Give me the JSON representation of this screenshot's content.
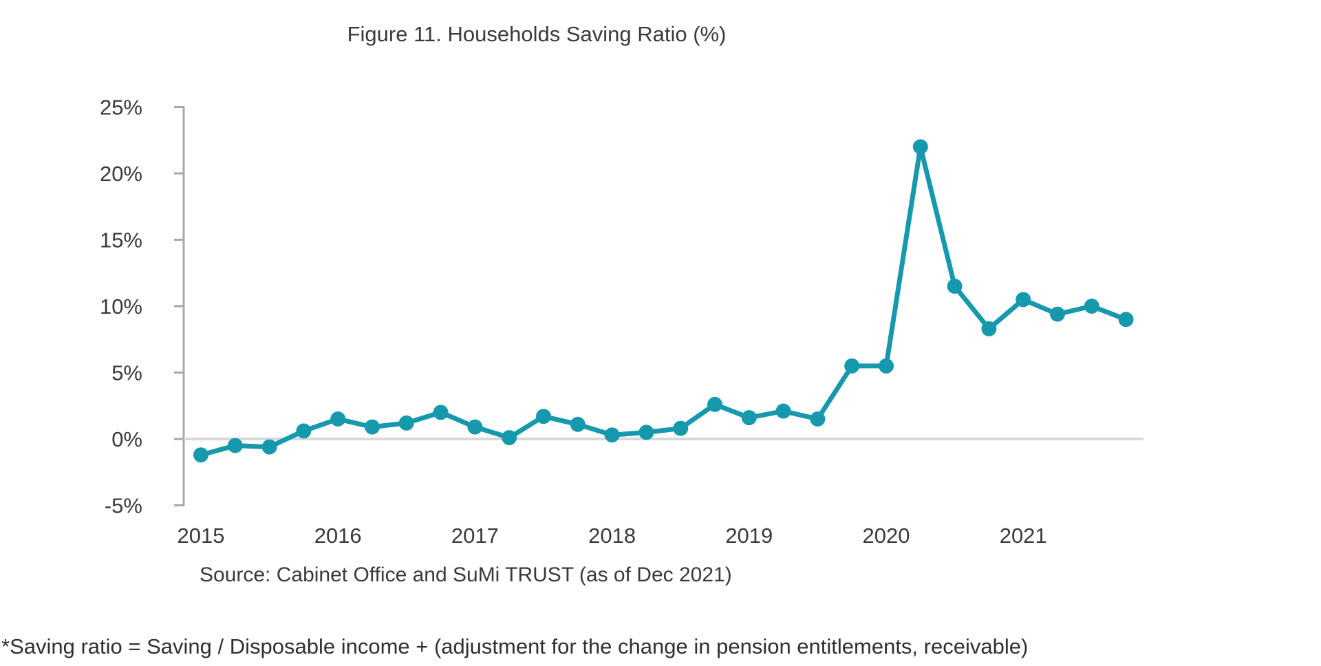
{
  "figure": {
    "title": "Figure 11. Households Saving Ratio (%)",
    "source": "Source: Cabinet Office and SuMi TRUST (as of Dec 2021)",
    "footnote": "*Saving ratio = Saving / Disposable income + (adjustment for the change in pension entitlements, receivable)"
  },
  "chart_data": {
    "type": "line",
    "title": "Figure 11. Households Saving Ratio (%)",
    "x": [
      "2015 Q1",
      "2015 Q2",
      "2015 Q3",
      "2015 Q4",
      "2016 Q1",
      "2016 Q2",
      "2016 Q3",
      "2016 Q4",
      "2017 Q1",
      "2017 Q2",
      "2017 Q3",
      "2017 Q4",
      "2018 Q1",
      "2018 Q2",
      "2018 Q3",
      "2018 Q4",
      "2019 Q1",
      "2019 Q2",
      "2019 Q3",
      "2019 Q4",
      "2020 Q1",
      "2020 Q2",
      "2020 Q3",
      "2020 Q4",
      "2021 Q1",
      "2021 Q2",
      "2021 Q3",
      "2021 Q4"
    ],
    "values": [
      -1.2,
      -0.5,
      -0.6,
      0.6,
      1.5,
      0.9,
      1.2,
      2.0,
      0.9,
      0.1,
      1.7,
      1.1,
      0.3,
      0.5,
      0.8,
      2.6,
      1.6,
      2.1,
      1.5,
      5.5,
      5.5,
      22.0,
      11.5,
      8.3,
      10.5,
      9.4,
      10.0,
      9.0
    ],
    "x_tick_labels": [
      "2015",
      "2016",
      "2017",
      "2018",
      "2019",
      "2020",
      "2021"
    ],
    "y_ticks": [
      25,
      20,
      15,
      10,
      5,
      0,
      -5
    ],
    "y_tick_suffix": "%",
    "ylim": [
      -5,
      25
    ],
    "ylabel": "",
    "xlabel": "",
    "legend": "none",
    "grid": "horizontal line at 0% only",
    "line_color": "#1799ad",
    "marker": "circle",
    "axis_color": "#a8a8a8",
    "gridline_color": "#d8d8d8",
    "text_color": "#3a3a3a"
  }
}
